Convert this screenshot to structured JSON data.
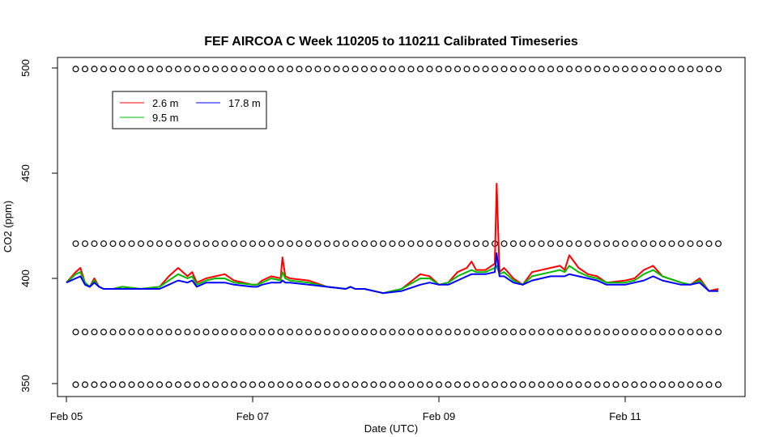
{
  "chart_data": {
    "type": "line",
    "title": "FEF AIRCOA C  Week 110205 to 110211  Calibrated Timeseries",
    "xlabel": "Date (UTC)",
    "ylabel": "CO2 (ppm)",
    "x_unit": "days",
    "x_ticks": [
      {
        "value": 0,
        "label": "Feb 05"
      },
      {
        "value": 2,
        "label": "Feb 07"
      },
      {
        "value": 4,
        "label": "Feb 09"
      },
      {
        "value": 6,
        "label": "Feb 11"
      }
    ],
    "y_ticks": [
      350,
      400,
      450,
      500
    ],
    "xlim": [
      -0.02,
      7.3
    ],
    "ylim": [
      345,
      510
    ],
    "grid": false,
    "legend_position": "top-left",
    "legend": [
      {
        "name": "2.6 m",
        "color": "#ff0000"
      },
      {
        "name": "9.5 m",
        "color": "#00bb00"
      },
      {
        "name": "17.8 m",
        "color": "#0000ff"
      }
    ],
    "series": [
      {
        "name": "2.6 m",
        "color": "#ff0000",
        "x": [
          0.0,
          0.1,
          0.15,
          0.2,
          0.25,
          0.3,
          0.35,
          0.4,
          0.5,
          0.6,
          0.8,
          1.0,
          1.1,
          1.2,
          1.3,
          1.35,
          1.4,
          1.5,
          1.6,
          1.7,
          1.8,
          2.0,
          2.05,
          2.1,
          2.2,
          2.3,
          2.32,
          2.35,
          2.4,
          2.6,
          2.8,
          3.0,
          3.05,
          3.1,
          3.2,
          3.4,
          3.6,
          3.8,
          3.9,
          4.0,
          4.1,
          4.2,
          4.3,
          4.35,
          4.4,
          4.5,
          4.6,
          4.62,
          4.65,
          4.7,
          4.8,
          4.9,
          5.0,
          5.2,
          5.3,
          5.35,
          5.4,
          5.5,
          5.6,
          5.7,
          5.8,
          6.0,
          6.1,
          6.2,
          6.3,
          6.4,
          6.6,
          6.7,
          6.8,
          6.9,
          7.0
        ],
        "y": [
          398,
          403,
          405,
          398,
          396,
          400,
          396,
          395,
          395,
          396,
          395,
          396,
          401,
          405,
          401,
          403,
          398,
          400,
          401,
          402,
          399,
          397,
          397,
          399,
          401,
          400,
          410,
          401,
          400,
          399,
          396,
          395,
          396,
          395,
          395,
          393,
          395,
          402,
          401,
          397,
          398,
          403,
          405,
          408,
          404,
          404,
          407,
          445,
          403,
          405,
          400,
          397,
          403,
          405,
          406,
          404,
          411,
          405,
          402,
          401,
          398,
          399,
          400,
          404,
          406,
          401,
          398,
          397,
          400,
          394,
          395
        ]
      },
      {
        "name": "9.5 m",
        "color": "#00bb00",
        "x": [
          0.0,
          0.1,
          0.15,
          0.2,
          0.25,
          0.3,
          0.35,
          0.4,
          0.5,
          0.6,
          0.8,
          1.0,
          1.1,
          1.2,
          1.3,
          1.35,
          1.4,
          1.5,
          1.6,
          1.7,
          1.8,
          2.0,
          2.05,
          2.1,
          2.2,
          2.3,
          2.32,
          2.35,
          2.4,
          2.6,
          2.8,
          3.0,
          3.05,
          3.1,
          3.2,
          3.4,
          3.6,
          3.8,
          3.9,
          4.0,
          4.1,
          4.2,
          4.3,
          4.35,
          4.4,
          4.5,
          4.6,
          4.62,
          4.65,
          4.7,
          4.8,
          4.9,
          5.0,
          5.2,
          5.3,
          5.35,
          5.4,
          5.5,
          5.6,
          5.7,
          5.8,
          6.0,
          6.1,
          6.2,
          6.3,
          6.4,
          6.6,
          6.7,
          6.8,
          6.9,
          7.0
        ],
        "y": [
          398,
          402,
          403,
          398,
          396,
          399,
          396,
          395,
          395,
          396,
          395,
          396,
          399,
          402,
          400,
          401,
          397,
          399,
          400,
          400,
          398,
          397,
          397,
          398,
          400,
          399,
          403,
          400,
          399,
          398,
          396,
          395,
          396,
          395,
          395,
          393,
          395,
          400,
          400,
          397,
          398,
          401,
          403,
          404,
          403,
          403,
          405,
          406,
          402,
          403,
          399,
          397,
          401,
          403,
          404,
          403,
          406,
          403,
          401,
          400,
          398,
          398,
          399,
          402,
          404,
          401,
          398,
          397,
          399,
          394,
          394
        ]
      },
      {
        "name": "17.8 m",
        "color": "#0000ff",
        "x": [
          0.0,
          0.1,
          0.15,
          0.2,
          0.25,
          0.3,
          0.35,
          0.4,
          0.5,
          0.6,
          0.8,
          1.0,
          1.1,
          1.2,
          1.3,
          1.35,
          1.4,
          1.5,
          1.6,
          1.7,
          1.8,
          2.0,
          2.05,
          2.1,
          2.2,
          2.3,
          2.32,
          2.35,
          2.4,
          2.6,
          2.8,
          3.0,
          3.05,
          3.1,
          3.2,
          3.4,
          3.6,
          3.8,
          3.9,
          4.0,
          4.1,
          4.2,
          4.3,
          4.35,
          4.4,
          4.5,
          4.6,
          4.62,
          4.65,
          4.7,
          4.8,
          4.9,
          5.0,
          5.2,
          5.3,
          5.35,
          5.4,
          5.5,
          5.6,
          5.7,
          5.8,
          6.0,
          6.1,
          6.2,
          6.3,
          6.4,
          6.6,
          6.7,
          6.8,
          6.9,
          7.0
        ],
        "y": [
          398,
          400,
          401,
          397,
          396,
          398,
          396,
          395,
          395,
          395,
          395,
          395,
          397,
          399,
          398,
          399,
          396,
          398,
          398,
          398,
          397,
          396,
          396,
          397,
          398,
          398,
          399,
          398,
          398,
          397,
          396,
          395,
          396,
          395,
          395,
          393,
          394,
          397,
          398,
          397,
          397,
          399,
          401,
          402,
          402,
          402,
          403,
          412,
          401,
          401,
          398,
          397,
          399,
          401,
          401,
          401,
          402,
          401,
          400,
          399,
          397,
          397,
          398,
          399,
          401,
          399,
          397,
          397,
          398,
          394,
          394
        ]
      },
      {
        "name": "",
        "type": "scatter",
        "marker": "circle",
        "x_step": 0.1,
        "x_range": [
          0.1,
          7.0
        ],
        "y_levels": [
          499.5,
          416.5,
          374.5,
          349.5
        ]
      }
    ]
  }
}
